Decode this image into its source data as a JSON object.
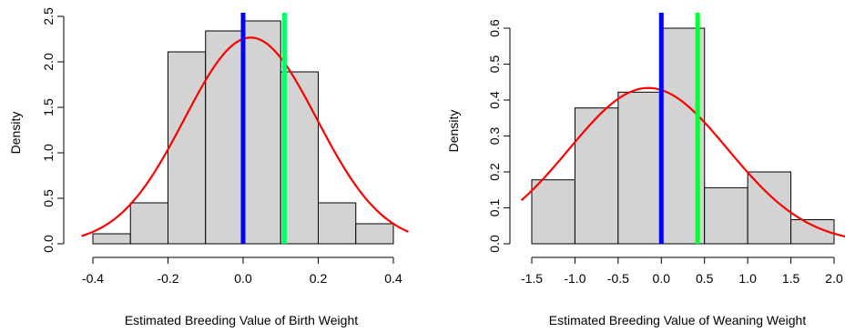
{
  "chart_data": [
    {
      "type": "histogram",
      "xlabel": "Estimated Breeding Value of Birth Weight",
      "ylabel": "Density",
      "xlim": [
        -0.42,
        0.43
      ],
      "ylim": [
        0,
        2.5
      ],
      "xticks": [
        "-0.4",
        "-0.2",
        "0.0",
        "0.2",
        "0.4"
      ],
      "xtick_values": [
        -0.4,
        -0.2,
        0.0,
        0.2,
        0.4
      ],
      "yticks": [
        "0.0",
        "0.5",
        "1.0",
        "1.5",
        "2.0",
        "2.5"
      ],
      "ytick_values": [
        0,
        0.5,
        1.0,
        1.5,
        2.0,
        2.5
      ],
      "bins": [
        {
          "x0": -0.4,
          "x1": -0.3,
          "density": 0.11
        },
        {
          "x0": -0.3,
          "x1": -0.2,
          "density": 0.45
        },
        {
          "x0": -0.2,
          "x1": -0.1,
          "density": 2.11
        },
        {
          "x0": -0.1,
          "x1": 0.0,
          "density": 2.34
        },
        {
          "x0": 0.0,
          "x1": 0.1,
          "density": 2.45
        },
        {
          "x0": 0.1,
          "x1": 0.2,
          "density": 1.89
        },
        {
          "x0": 0.2,
          "x1": 0.3,
          "density": 0.45
        },
        {
          "x0": 0.3,
          "x1": 0.4,
          "density": 0.22
        }
      ],
      "normal_curve": {
        "mean": 0.02,
        "sd": 0.176,
        "xrange": [
          -0.43,
          0.44
        ],
        "color": "#ff0000"
      },
      "vlines": [
        {
          "x": 0.0,
          "color": "#0000ff"
        },
        {
          "x": 0.11,
          "color": "#00ff66"
        }
      ],
      "bar_fill": "#d3d3d3",
      "bar_stroke": "#000000"
    },
    {
      "type": "histogram",
      "xlabel": "Estimated Breeding Value of Weaning Weight",
      "ylabel": "Density",
      "xlim": [
        -1.58,
        2.03
      ],
      "ylim": [
        0,
        0.6
      ],
      "xticks": [
        "-1.5",
        "-1.0",
        "-0.5",
        "0.0",
        "0.5",
        "1.0",
        "1.5",
        "2.0"
      ],
      "xtick_values": [
        -1.5,
        -1.0,
        -0.5,
        0.0,
        0.5,
        1.0,
        1.5,
        2.0
      ],
      "yticks": [
        "0.0",
        "0.1",
        "0.2",
        "0.3",
        "0.4",
        "0.5",
        "0.6"
      ],
      "ytick_values": [
        0,
        0.1,
        0.2,
        0.3,
        0.4,
        0.5,
        0.6
      ],
      "bins": [
        {
          "x0": -1.5,
          "x1": -1.0,
          "density": 0.178
        },
        {
          "x0": -1.0,
          "x1": -0.5,
          "density": 0.378
        },
        {
          "x0": -0.5,
          "x1": 0.0,
          "density": 0.422
        },
        {
          "x0": 0.0,
          "x1": 0.5,
          "density": 0.6
        },
        {
          "x0": 0.5,
          "x1": 1.0,
          "density": 0.156
        },
        {
          "x0": 1.0,
          "x1": 1.5,
          "density": 0.2
        },
        {
          "x0": 1.5,
          "x1": 2.0,
          "density": 0.067
        }
      ],
      "normal_curve": {
        "mean": -0.15,
        "sd": 0.92,
        "xrange": [
          -1.62,
          2.15
        ],
        "color": "#ff0000"
      },
      "vlines": [
        {
          "x": 0.0,
          "color": "#0000ff"
        },
        {
          "x": 0.42,
          "color": "#00ff33"
        }
      ],
      "bar_fill": "#d3d3d3",
      "bar_stroke": "#000000"
    }
  ]
}
